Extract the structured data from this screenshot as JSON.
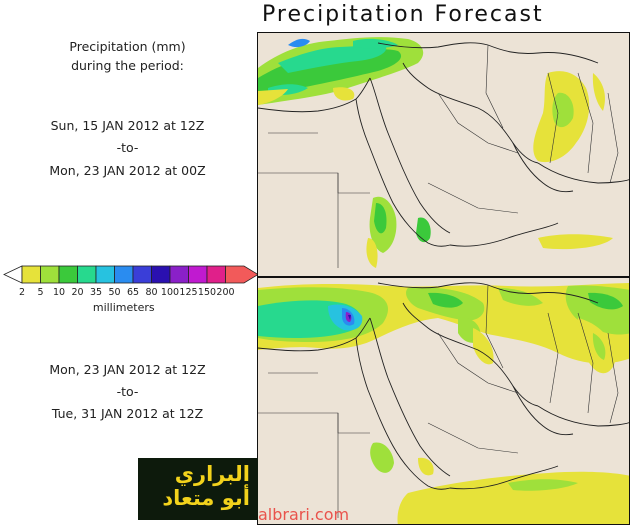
{
  "header": {
    "title": "Precipitation Forecast"
  },
  "period_caption": {
    "line1": "Precipitation (mm)",
    "line2": "during the period:"
  },
  "period_one": {
    "start": "Sun, 15 JAN 2012 at 12Z",
    "to": "-to-",
    "end": "Mon, 23 JAN 2012 at 00Z"
  },
  "period_two": {
    "start": "Mon, 23 JAN 2012 at 12Z",
    "to": "-to-",
    "end": "Tue, 31 JAN 2012 at 12Z"
  },
  "legend": {
    "unit": "millimeters",
    "ticks": [
      "2",
      "5",
      "10",
      "20",
      "35",
      "50",
      "65",
      "80",
      "100",
      "125",
      "150",
      "200"
    ],
    "colors": [
      "#e6e23a",
      "#9fe03b",
      "#3bc93b",
      "#27d98e",
      "#27c2e0",
      "#2a8cf0",
      "#3a3ed8",
      "#2a10b0",
      "#8a20c8",
      "#c01ad0",
      "#e0208a",
      "#f25a5a"
    ]
  },
  "logo": {
    "line1": "البراري",
    "line2": "أبو متعاد"
  },
  "watermark": {
    "text": "albrari.com"
  }
}
